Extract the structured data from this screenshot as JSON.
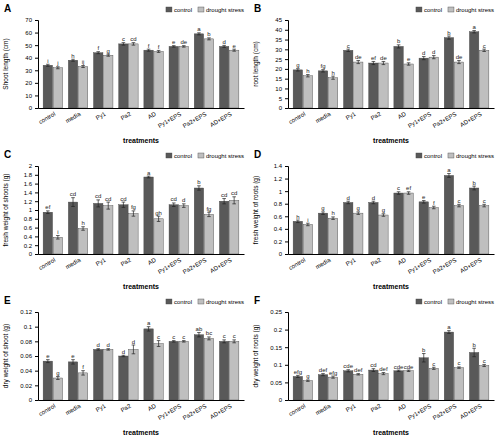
{
  "chart_data": [
    {
      "type": "bar",
      "title": "A",
      "x_label": "treatments",
      "y_label": "Shoot length (cm)",
      "categories": [
        "control",
        "media",
        "Py1",
        "Pa2",
        "AD",
        "Py1+EPS",
        "Pa2+EPS",
        "AD+EPS"
      ],
      "ylim": [
        0,
        70
      ],
      "yticks": [
        0,
        10,
        20,
        30,
        40,
        50,
        60,
        70
      ],
      "grid": false,
      "legend": "top-right",
      "series": [
        {
          "name": "control",
          "color": "#595959",
          "values": [
            34,
            38,
            44,
            51,
            46,
            49,
            59,
            49
          ],
          "errors": [
            0.8,
            0.8,
            0.8,
            1,
            0.8,
            0.6,
            0.8,
            0.8
          ],
          "letters": [
            "i",
            "h",
            "f",
            "c",
            "f",
            "e",
            "a",
            "d"
          ]
        },
        {
          "name": "drought stress",
          "color": "#bfbfbf",
          "values": [
            32,
            33,
            42,
            51,
            45,
            49,
            55,
            46
          ],
          "errors": [
            0.8,
            0.8,
            0.8,
            1,
            0.8,
            0.6,
            0.8,
            0.8
          ],
          "letters": [
            "j",
            "ij",
            "g",
            "cd",
            "f",
            "de",
            "b",
            "e"
          ]
        }
      ]
    },
    {
      "type": "bar",
      "title": "B",
      "x_label": "treatments",
      "y_label": "root length (cm)",
      "categories": [
        "control",
        "media",
        "Py1",
        "Pa2",
        "AD",
        "Py1+EPS",
        "Pa2+EPS",
        "AD+EPS"
      ],
      "ylim": [
        0,
        45
      ],
      "yticks": [
        0,
        5,
        10,
        15,
        20,
        25,
        30,
        35,
        40,
        45
      ],
      "grid": false,
      "legend": "top-right",
      "series": [
        {
          "name": "control",
          "color": "#595959",
          "values": [
            19.5,
            19,
            29.5,
            23,
            31.5,
            25.5,
            36,
            39
          ],
          "errors": [
            0.6,
            0.6,
            0.6,
            0.8,
            0.8,
            0.8,
            0.8,
            0.6
          ],
          "letters": [
            "g",
            "fg",
            "c",
            "ef",
            "b",
            "d",
            "b",
            "a"
          ]
        },
        {
          "name": "drought stress",
          "color": "#bfbfbf",
          "values": [
            16.5,
            15.5,
            23.5,
            23,
            22.5,
            26,
            23.5,
            29.5
          ],
          "errors": [
            0.6,
            0.8,
            0.8,
            0.8,
            0.6,
            0.8,
            0.8,
            0.6
          ],
          "letters": [
            "h",
            "h",
            "de",
            "de",
            "e",
            "d",
            "de",
            "c"
          ]
        }
      ]
    },
    {
      "type": "bar",
      "title": "C",
      "x_label": "treatments",
      "y_label": "fresh weight of shoots (g)",
      "categories": [
        "control",
        "media",
        "Py1",
        "Pa2",
        "AD",
        "Py1+EPS",
        "Pa2+EPS",
        "AD+EPS"
      ],
      "ylim": [
        0,
        2
      ],
      "yticks": [
        0,
        0.2,
        0.4,
        0.6,
        0.8,
        1,
        1.2,
        1.4,
        1.6,
        1.8,
        2
      ],
      "grid": false,
      "legend": "top-right",
      "series": [
        {
          "name": "control",
          "color": "#595959",
          "values": [
            0.95,
            1.18,
            1.15,
            1.12,
            1.75,
            1.12,
            1.5,
            1.2
          ],
          "errors": [
            0.03,
            0.1,
            0.08,
            0.06,
            0.02,
            0.04,
            0.05,
            0.06
          ],
          "letters": [
            "ef",
            "cd",
            "cd",
            "cd",
            "a",
            "cd",
            "b",
            "cd"
          ]
        },
        {
          "name": "drought stress",
          "color": "#bfbfbf",
          "values": [
            0.38,
            0.58,
            1.1,
            0.92,
            0.8,
            1.1,
            0.9,
            1.22
          ],
          "errors": [
            0.04,
            0.04,
            0.08,
            0.06,
            0.06,
            0.04,
            0.05,
            0.08
          ],
          "letters": [
            "i",
            "h",
            "cd",
            "fg",
            "gh",
            "d",
            "fg",
            "cd"
          ]
        }
      ]
    },
    {
      "type": "bar",
      "title": "D",
      "x_label": "treatments",
      "y_label": "fresh weight of roots (g)",
      "categories": [
        "control",
        "media",
        "Py1",
        "Pa2",
        "AD",
        "Py1+EPS",
        "Pa2+EPS",
        "AD+EPS"
      ],
      "ylim": [
        0,
        1.4
      ],
      "yticks": [
        0,
        0.2,
        0.4,
        0.6,
        0.8,
        1,
        1.2,
        1.4
      ],
      "grid": false,
      "legend": "top-right",
      "series": [
        {
          "name": "control",
          "color": "#595959",
          "values": [
            0.52,
            0.65,
            0.82,
            0.82,
            0.97,
            0.83,
            1.25,
            1.05
          ],
          "errors": [
            0.02,
            0.02,
            0.02,
            0.02,
            0.02,
            0.02,
            0.03,
            0.03
          ],
          "letters": [
            "h",
            "g",
            "d",
            "d",
            "c",
            "e",
            "a",
            "b"
          ]
        },
        {
          "name": "drought stress",
          "color": "#bfbfbf",
          "values": [
            0.47,
            0.57,
            0.65,
            0.62,
            0.97,
            0.74,
            0.77,
            0.77
          ],
          "errors": [
            0.02,
            0.02,
            0.02,
            0.02,
            0.02,
            0.02,
            0.02,
            0.02
          ],
          "letters": [
            "i",
            "h",
            "g",
            "g",
            "ef",
            "f",
            "c",
            "c"
          ]
        }
      ]
    },
    {
      "type": "bar",
      "title": "E",
      "x_label": "treatments",
      "y_label": "dry weight of shoot (g)",
      "categories": [
        "control",
        "media",
        "Py1",
        "Pa2",
        "AD",
        "Py1+EPS",
        "Pa2+EPS",
        "AD+EPS"
      ],
      "ylim": [
        0,
        0.12
      ],
      "yticks": [
        0,
        0.02,
        0.04,
        0.06,
        0.08,
        0.1,
        0.12
      ],
      "grid": false,
      "legend": "top-right",
      "series": [
        {
          "name": "control",
          "color": "#595959",
          "values": [
            0.053,
            0.052,
            0.069,
            0.06,
            0.097,
            0.08,
            0.089,
            0.08
          ],
          "errors": [
            0.002,
            0.003,
            0.001,
            0.001,
            0.003,
            0.001,
            0.003,
            0.002
          ],
          "letters": [
            "e",
            "e",
            "d",
            "d",
            "a",
            "c",
            "ab",
            "c"
          ]
        },
        {
          "name": "drought stress",
          "color": "#bfbfbf",
          "values": [
            0.03,
            0.037,
            0.069,
            0.069,
            0.077,
            0.08,
            0.084,
            0.08
          ],
          "errors": [
            0.002,
            0.003,
            0.001,
            0.006,
            0.004,
            0.001,
            0.002,
            0.002
          ],
          "letters": [
            "g",
            "f",
            "d",
            "d",
            "c",
            "c",
            "bc",
            "c"
          ]
        }
      ]
    },
    {
      "type": "bar",
      "title": "F",
      "x_label": "treatments",
      "y_label": "dry weight of roots (g)",
      "categories": [
        "control",
        "media",
        "Py1",
        "Pa2",
        "AD",
        "Py1+EPS",
        "Pa2+EPS",
        "AD+EPS"
      ],
      "ylim": [
        0,
        0.25
      ],
      "yticks": [
        0,
        0.05,
        0.1,
        0.15,
        0.2,
        0.25
      ],
      "grid": false,
      "legend": "top-right",
      "series": [
        {
          "name": "control",
          "color": "#595959",
          "values": [
            0.067,
            0.072,
            0.083,
            0.085,
            0.083,
            0.12,
            0.193,
            0.135
          ],
          "errors": [
            0.003,
            0.003,
            0.003,
            0.004,
            0.002,
            0.012,
            0.004,
            0.012
          ],
          "letters": [
            "efg",
            "def",
            "cde",
            "cd",
            "cde",
            "b",
            "a",
            "b"
          ]
        },
        {
          "name": "drought stress",
          "color": "#bfbfbf",
          "values": [
            0.055,
            0.065,
            0.073,
            0.075,
            0.083,
            0.09,
            0.092,
            0.098
          ],
          "errors": [
            0.002,
            0.003,
            0.002,
            0.003,
            0.002,
            0.003,
            0.002,
            0.003
          ],
          "letters": [
            "g",
            "efg",
            "def",
            "def",
            "cde",
            "c",
            "c",
            "c"
          ]
        }
      ]
    }
  ]
}
